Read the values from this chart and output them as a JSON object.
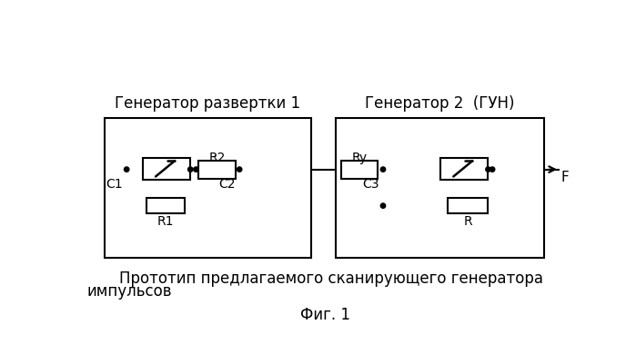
{
  "title1": "Генератор развертки 1",
  "title2": "Генератор 2  (ГУН)",
  "caption_line1": "Прототип предлагаемого сканирующего генератора",
  "caption_line2": "импульсов",
  "fig_label": "Фиг. 1",
  "bg_color": "#ffffff",
  "font_size_title": 12,
  "font_size_caption": 12,
  "font_size_label": 12,
  "font_size_component": 10
}
